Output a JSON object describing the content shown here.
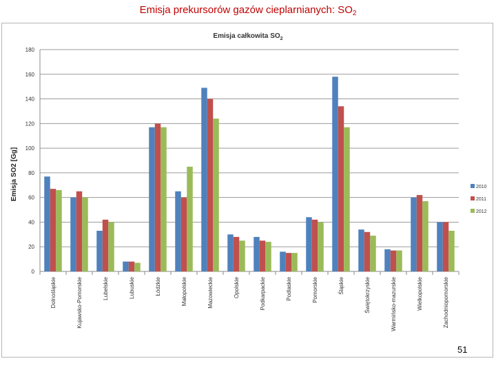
{
  "slide": {
    "title": "Emisja prekursorów gazów cieplarnianych: SO",
    "title_subscript": "2",
    "page_number": "51"
  },
  "chart_data": {
    "type": "bar",
    "title": "Emisja całkowita SO",
    "title_subscript": "2",
    "xlabel": "",
    "ylabel": "Emisja SO2 [Gg]",
    "ylim": [
      0,
      180
    ],
    "yticks": [
      0,
      20,
      40,
      60,
      80,
      100,
      120,
      140,
      160,
      180
    ],
    "grid": true,
    "legend_position": "right",
    "categories": [
      "Dolnośląskie",
      "Kujawsko-Pomorskie",
      "Lubelskie",
      "Lubuskie",
      "Łódzkie",
      "Małopolskie",
      "Mazowieckie",
      "Opolskie",
      "Podkarpackie",
      "Podlaskie",
      "Pomorskie",
      "Śląskie",
      "Świętokrzyskie",
      "Warmińsko-mazurskie",
      "Wielkopolskie",
      "Zachodniopomorskie"
    ],
    "series": [
      {
        "name": "2010",
        "color": "#4f81bd",
        "values": [
          77,
          60,
          33,
          8,
          117,
          65,
          149,
          30,
          28,
          16,
          44,
          158,
          34,
          18,
          60,
          40
        ]
      },
      {
        "name": "2011",
        "color": "#c0504d",
        "values": [
          67,
          65,
          42,
          8,
          120,
          60,
          140,
          28,
          25,
          15,
          42,
          134,
          32,
          17,
          62,
          40
        ]
      },
      {
        "name": "2012",
        "color": "#9bbb59",
        "values": [
          66,
          60,
          40,
          7,
          117,
          85,
          124,
          25,
          24,
          15,
          40,
          117,
          29,
          17,
          57,
          33
        ]
      }
    ]
  }
}
